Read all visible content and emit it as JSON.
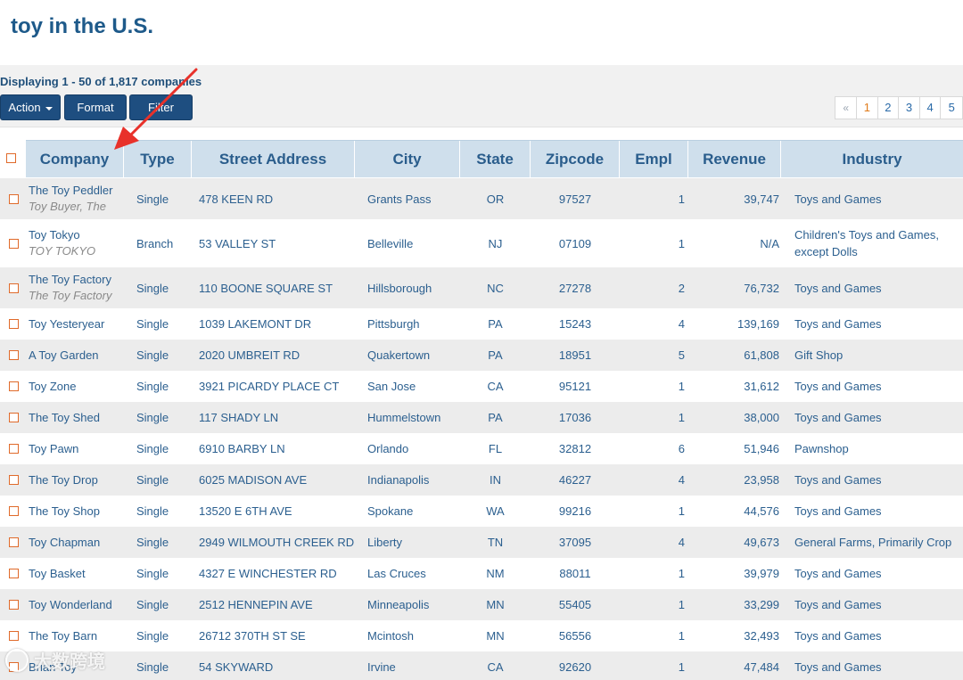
{
  "page": {
    "title": "toy in the U.S."
  },
  "toolbar": {
    "display_count": "Displaying 1 - 50 of 1,817 companies",
    "action_label": "Action",
    "format_label": "Format",
    "filter_label": "Filter"
  },
  "pagination": {
    "prev": "«",
    "pages": [
      "1",
      "2",
      "3",
      "4",
      "5"
    ],
    "current": "1"
  },
  "table": {
    "columns": [
      "Company",
      "Type",
      "Street Address",
      "City",
      "State",
      "Zipcode",
      "Empl",
      "Revenue",
      "Industry"
    ],
    "rows": [
      {
        "company": "The Toy Peddler",
        "company_alt": "Toy Buyer, The",
        "type": "Single",
        "street": "478 KEEN RD",
        "city": "Grants Pass",
        "state": "OR",
        "zip": "97527",
        "empl": "1",
        "revenue": "39,747",
        "industry": "Toys and Games"
      },
      {
        "company": "Toy Tokyo",
        "company_alt": "TOY TOKYO",
        "type": "Branch",
        "street": "53 VALLEY ST",
        "city": "Belleville",
        "state": "NJ",
        "zip": "07109",
        "empl": "1",
        "revenue": "N/A",
        "industry": "Children's Toys and Games, except Dolls"
      },
      {
        "company": "The Toy Factory",
        "company_alt": "The Toy Factory",
        "type": "Single",
        "street": "110 BOONE SQUARE ST",
        "city": "Hillsborough",
        "state": "NC",
        "zip": "27278",
        "empl": "2",
        "revenue": "76,732",
        "industry": "Toys and Games"
      },
      {
        "company": "Toy Yesteryear",
        "company_alt": "",
        "type": "Single",
        "street": "1039 LAKEMONT DR",
        "city": "Pittsburgh",
        "state": "PA",
        "zip": "15243",
        "empl": "4",
        "revenue": "139,169",
        "industry": "Toys and Games"
      },
      {
        "company": "A Toy Garden",
        "company_alt": "",
        "type": "Single",
        "street": "2020 UMBREIT RD",
        "city": "Quakertown",
        "state": "PA",
        "zip": "18951",
        "empl": "5",
        "revenue": "61,808",
        "industry": "Gift Shop"
      },
      {
        "company": "Toy Zone",
        "company_alt": "",
        "type": "Single",
        "street": "3921 PICARDY PLACE CT",
        "city": "San Jose",
        "state": "CA",
        "zip": "95121",
        "empl": "1",
        "revenue": "31,612",
        "industry": "Toys and Games"
      },
      {
        "company": "The Toy Shed",
        "company_alt": "",
        "type": "Single",
        "street": "117 SHADY LN",
        "city": "Hummelstown",
        "state": "PA",
        "zip": "17036",
        "empl": "1",
        "revenue": "38,000",
        "industry": "Toys and Games"
      },
      {
        "company": "Toy Pawn",
        "company_alt": "",
        "type": "Single",
        "street": "6910 BARBY LN",
        "city": "Orlando",
        "state": "FL",
        "zip": "32812",
        "empl": "6",
        "revenue": "51,946",
        "industry": "Pawnshop"
      },
      {
        "company": "The Toy Drop",
        "company_alt": "",
        "type": "Single",
        "street": "6025 MADISON AVE",
        "city": "Indianapolis",
        "state": "IN",
        "zip": "46227",
        "empl": "4",
        "revenue": "23,958",
        "industry": "Toys and Games"
      },
      {
        "company": "The Toy Shop",
        "company_alt": "",
        "type": "Single",
        "street": "13520 E 6TH AVE",
        "city": "Spokane",
        "state": "WA",
        "zip": "99216",
        "empl": "1",
        "revenue": "44,576",
        "industry": "Toys and Games"
      },
      {
        "company": "Toy Chapman",
        "company_alt": "",
        "type": "Single",
        "street": "2949 WILMOUTH CREEK RD",
        "city": "Liberty",
        "state": "TN",
        "zip": "37095",
        "empl": "4",
        "revenue": "49,673",
        "industry": "General Farms, Primarily Crop"
      },
      {
        "company": "Toy Basket",
        "company_alt": "",
        "type": "Single",
        "street": "4327 E WINCHESTER RD",
        "city": "Las Cruces",
        "state": "NM",
        "zip": "88011",
        "empl": "1",
        "revenue": "39,979",
        "industry": "Toys and Games"
      },
      {
        "company": "Toy Wonderland",
        "company_alt": "",
        "type": "Single",
        "street": "2512 HENNEPIN AVE",
        "city": "Minneapolis",
        "state": "MN",
        "zip": "55405",
        "empl": "1",
        "revenue": "33,299",
        "industry": "Toys and Games"
      },
      {
        "company": "The Toy Barn",
        "company_alt": "",
        "type": "Single",
        "street": "26712 370TH ST SE",
        "city": "Mcintosh",
        "state": "MN",
        "zip": "56556",
        "empl": "1",
        "revenue": "32,493",
        "industry": "Toys and Games"
      },
      {
        "company": "Brian Toy",
        "company_alt": "",
        "type": "Single",
        "street": "54 SKYWARD",
        "city": "Irvine",
        "state": "CA",
        "zip": "92620",
        "empl": "1",
        "revenue": "47,484",
        "industry": "Toys and Games"
      }
    ]
  },
  "watermark": {
    "text": "大数跨境"
  },
  "colors": {
    "brand": "#1e4e80",
    "header_bg": "#cfdfec",
    "accent": "#e06a2a",
    "annotation": "#e8312a"
  }
}
